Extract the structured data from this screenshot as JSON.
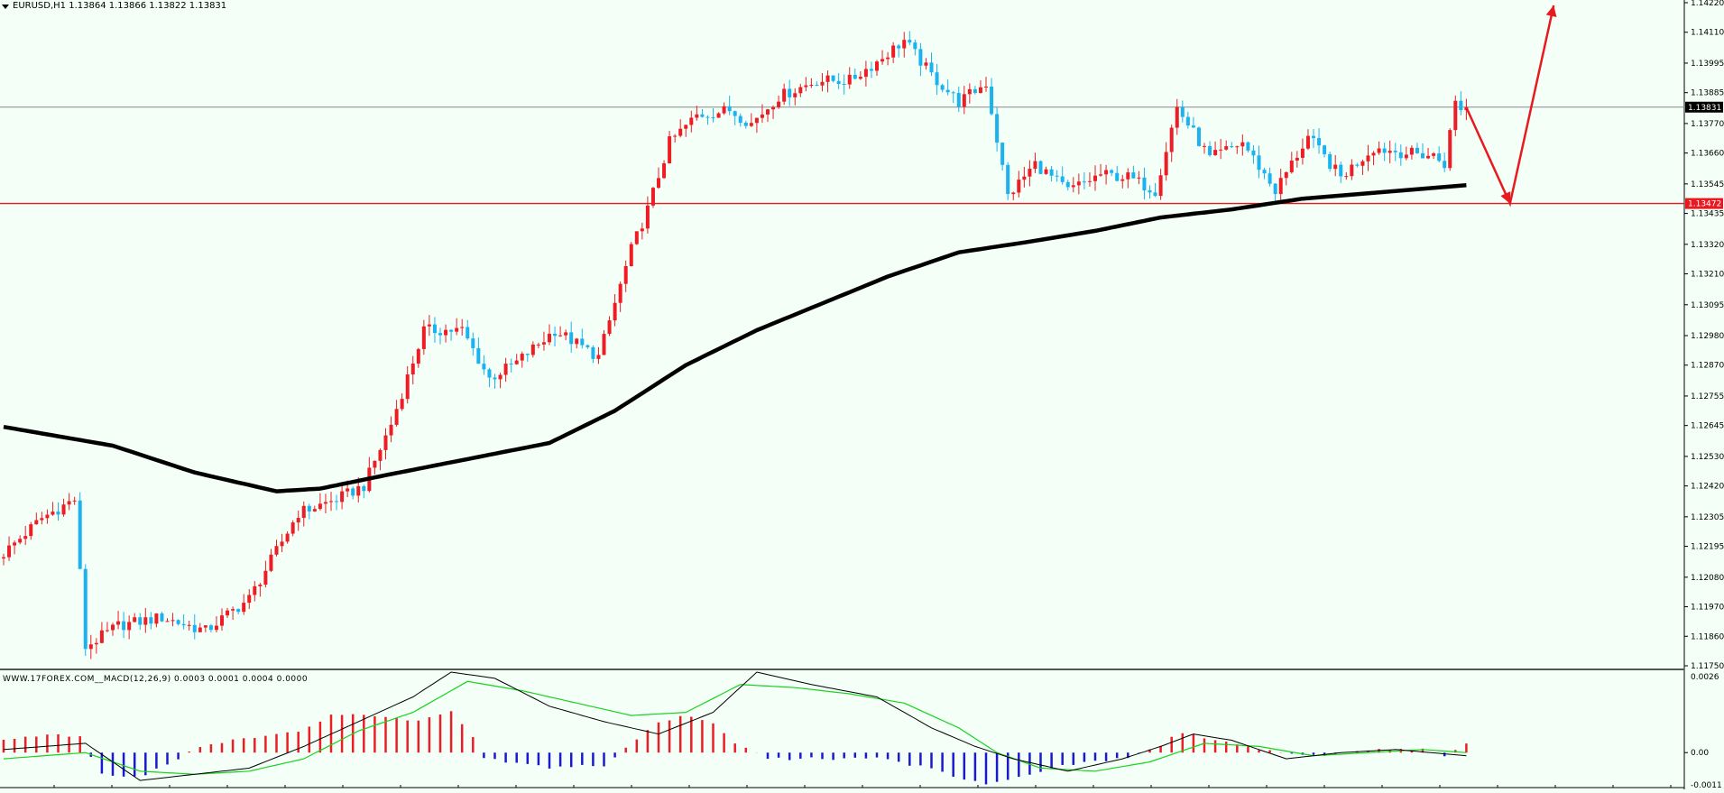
{
  "header": {
    "symbol": "EURUSD,H1",
    "ohlc": "1.13864 1.13866 1.13822 1.13831",
    "macd_label": "WWW.17FOREX.COM__MACD(12,26,9) 0.0003 0.0001 0.0004 0.0000"
  },
  "colors": {
    "background": "#f3fff7",
    "bull": "#ee1c25",
    "bear": "#1ab2ef",
    "ma": "#000000",
    "support_line": "#e8191f",
    "current_line": "#8a8a8a",
    "macd_pos": "#ee1c25",
    "macd_neg": "#1a1acc",
    "signal": "#19d11e"
  },
  "chart_data": [
    {
      "type": "candlestick",
      "symbol": "EURUSD",
      "timeframe": "H1",
      "ylim": [
        1.1175,
        1.1422
      ],
      "y_ticks": [
        "1.14220",
        "1.14110",
        "1.13995",
        "1.13885",
        "1.13770",
        "1.13660",
        "1.13545",
        "1.13435",
        "1.13320",
        "1.13210",
        "1.13095",
        "1.12980",
        "1.12870",
        "1.12755",
        "1.12645",
        "1.12530",
        "1.12420",
        "1.12305",
        "1.12195",
        "1.12080",
        "1.11970",
        "1.11860",
        "1.11750"
      ],
      "price_lines": [
        {
          "label": "1.13831",
          "value": 1.13831
        },
        {
          "label": "1.13472",
          "value": 1.13472
        }
      ],
      "anchors": [
        [
          0,
          1.1215
        ],
        [
          8,
          1.123
        ],
        [
          14,
          1.1237
        ],
        [
          16,
          1.1182
        ],
        [
          22,
          1.119
        ],
        [
          30,
          1.1193
        ],
        [
          38,
          1.1188
        ],
        [
          46,
          1.12
        ],
        [
          55,
          1.1232
        ],
        [
          62,
          1.1237
        ],
        [
          67,
          1.1242
        ],
        [
          72,
          1.1265
        ],
        [
          78,
          1.13
        ],
        [
          85,
          1.13
        ],
        [
          90,
          1.1282
        ],
        [
          95,
          1.1288
        ],
        [
          102,
          1.13
        ],
        [
          110,
          1.129
        ],
        [
          116,
          1.133
        ],
        [
          119,
          1.1345
        ],
        [
          123,
          1.137
        ],
        [
          128,
          1.138
        ],
        [
          134,
          1.1382
        ],
        [
          138,
          1.1377
        ],
        [
          143,
          1.1387
        ],
        [
          150,
          1.1393
        ],
        [
          156,
          1.1393
        ],
        [
          161,
          1.14
        ],
        [
          166,
          1.1408
        ],
        [
          171,
          1.1395
        ],
        [
          176,
          1.1385
        ],
        [
          181,
          1.1392
        ],
        [
          185,
          1.135
        ],
        [
          190,
          1.1362
        ],
        [
          196,
          1.1352
        ],
        [
          202,
          1.1358
        ],
        [
          207,
          1.1357
        ],
        [
          212,
          1.1352
        ],
        [
          216,
          1.1383
        ],
        [
          222,
          1.1364
        ],
        [
          228,
          1.137
        ],
        [
          234,
          1.1352
        ],
        [
          240,
          1.1372
        ],
        [
          246,
          1.1357
        ],
        [
          252,
          1.1368
        ],
        [
          258,
          1.1366
        ],
        [
          263,
          1.1365
        ],
        [
          265,
          1.1362
        ],
        [
          267,
          1.1385
        ],
        [
          268,
          1.1383
        ]
      ],
      "ma": [
        [
          0,
          1.1264
        ],
        [
          20,
          1.1257
        ],
        [
          35,
          1.1247
        ],
        [
          50,
          1.124
        ],
        [
          58,
          1.1241
        ],
        [
          70,
          1.1246
        ],
        [
          85,
          1.1252
        ],
        [
          100,
          1.1258
        ],
        [
          112,
          1.127
        ],
        [
          125,
          1.1287
        ],
        [
          138,
          1.13
        ],
        [
          150,
          1.131
        ],
        [
          162,
          1.132
        ],
        [
          175,
          1.1329
        ],
        [
          188,
          1.1333
        ],
        [
          200,
          1.1337
        ],
        [
          212,
          1.1342
        ],
        [
          225,
          1.1345
        ],
        [
          238,
          1.1349
        ],
        [
          250,
          1.1351
        ],
        [
          268,
          1.1354
        ]
      ],
      "forecast_arrow": [
        [
          268,
          1.1383
        ],
        [
          276,
          1.13472
        ],
        [
          284,
          1.1421
        ]
      ],
      "candle_count": 269
    },
    {
      "type": "macd_histogram",
      "title": "MACD(12,26,9)",
      "values_label": "0.0003 0.0001 0.0004 0.0000",
      "ylim": [
        -0.0011,
        0.0026
      ],
      "y_ticks": [
        "0.0026",
        "0.00",
        "-0.0011"
      ],
      "hist": [
        [
          0,
          0.0004
        ],
        [
          10,
          0.0006
        ],
        [
          15,
          0.0005
        ],
        [
          17,
          -0.0007
        ],
        [
          25,
          -0.0008
        ],
        [
          30,
          -0.0004
        ],
        [
          35,
          0.0001
        ],
        [
          45,
          0.0005
        ],
        [
          55,
          0.0007
        ],
        [
          60,
          0.0012
        ],
        [
          68,
          0.0012
        ],
        [
          75,
          0.001
        ],
        [
          82,
          0.0013
        ],
        [
          85,
          0.0008
        ],
        [
          88,
          -0.0002
        ],
        [
          100,
          -0.0005
        ],
        [
          110,
          -0.0004
        ],
        [
          115,
          0.0003
        ],
        [
          120,
          0.001
        ],
        [
          125,
          0.0012
        ],
        [
          130,
          0.0009
        ],
        [
          135,
          0.0002
        ],
        [
          140,
          -0.0002
        ],
        [
          150,
          -0.0002
        ],
        [
          160,
          -0.0002
        ],
        [
          170,
          -0.0005
        ],
        [
          175,
          -0.0009
        ],
        [
          180,
          -0.001
        ],
        [
          185,
          -0.0008
        ],
        [
          195,
          -0.0004
        ],
        [
          205,
          -0.0002
        ],
        [
          212,
          0.0002
        ],
        [
          215,
          0.0007
        ],
        [
          220,
          0.0005
        ],
        [
          225,
          0.0003
        ],
        [
          230,
          0.0001
        ],
        [
          240,
          -0.0001
        ],
        [
          250,
          0.0001
        ],
        [
          260,
          0.0001
        ],
        [
          264,
          -0.0001
        ],
        [
          268,
          0.0003
        ]
      ],
      "macd_line": [
        [
          0,
          0.0001
        ],
        [
          15,
          0.0003
        ],
        [
          25,
          -0.0009
        ],
        [
          35,
          -0.0007
        ],
        [
          45,
          -0.0005
        ],
        [
          55,
          0.0002
        ],
        [
          65,
          0.001
        ],
        [
          75,
          0.0018
        ],
        [
          82,
          0.0026
        ],
        [
          90,
          0.0024
        ],
        [
          100,
          0.0015
        ],
        [
          110,
          0.001
        ],
        [
          120,
          0.0006
        ],
        [
          130,
          0.0013
        ],
        [
          138,
          0.0026
        ],
        [
          148,
          0.0022
        ],
        [
          160,
          0.0018
        ],
        [
          170,
          0.0008
        ],
        [
          178,
          0.0002
        ],
        [
          185,
          -0.0002
        ],
        [
          195,
          -0.0006
        ],
        [
          205,
          -0.0002
        ],
        [
          212,
          0.0002
        ],
        [
          218,
          0.0006
        ],
        [
          225,
          0.0004
        ],
        [
          235,
          -0.0002
        ],
        [
          245,
          0.0
        ],
        [
          255,
          0.0001
        ],
        [
          268,
          -0.0001
        ]
      ],
      "signal_line": [
        [
          0,
          -0.0002
        ],
        [
          15,
          0.0
        ],
        [
          25,
          -0.0006
        ],
        [
          35,
          -0.0007
        ],
        [
          45,
          -0.0006
        ],
        [
          55,
          -0.0002
        ],
        [
          65,
          0.0007
        ],
        [
          75,
          0.0013
        ],
        [
          85,
          0.0023
        ],
        [
          95,
          0.002
        ],
        [
          105,
          0.0016
        ],
        [
          115,
          0.0012
        ],
        [
          125,
          0.0013
        ],
        [
          135,
          0.0022
        ],
        [
          145,
          0.0021
        ],
        [
          155,
          0.0019
        ],
        [
          165,
          0.0016
        ],
        [
          175,
          0.0008
        ],
        [
          182,
          0.0
        ],
        [
          190,
          -0.0005
        ],
        [
          200,
          -0.0006
        ],
        [
          210,
          -0.0003
        ],
        [
          220,
          0.0003
        ],
        [
          230,
          0.0002
        ],
        [
          240,
          -0.0001
        ],
        [
          250,
          0.0
        ],
        [
          260,
          0.0001
        ],
        [
          268,
          0.0
        ]
      ]
    }
  ]
}
